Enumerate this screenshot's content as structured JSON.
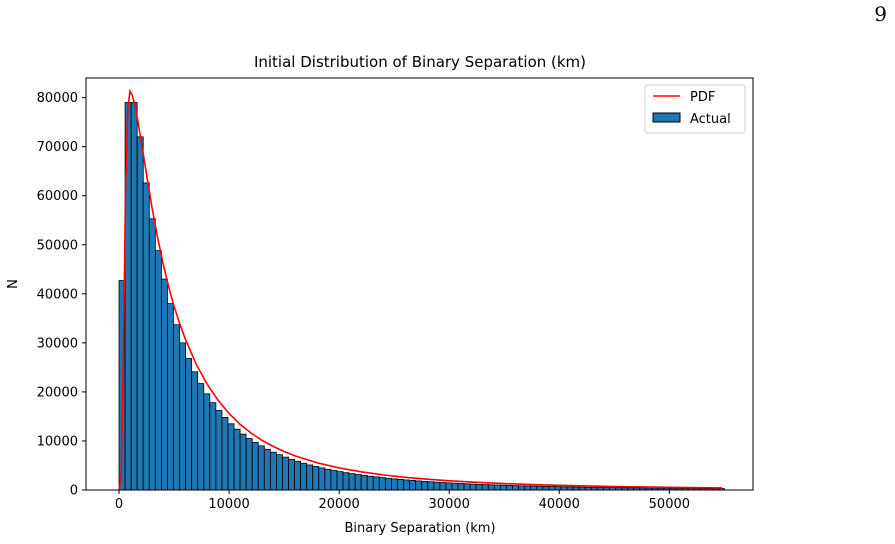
{
  "page": {
    "page_number": "9"
  },
  "chart_data": {
    "type": "bar",
    "title": "Initial Distribution of Binary Separation (km)",
    "xlabel": "Binary Separation (km)",
    "ylabel": "N",
    "xlim": [
      -3000,
      57600
    ],
    "ylim": [
      0,
      84000
    ],
    "xticks": [
      0,
      10000,
      20000,
      30000,
      40000,
      50000
    ],
    "yticks": [
      0,
      10000,
      20000,
      30000,
      40000,
      50000,
      60000,
      70000,
      80000
    ],
    "grid": false,
    "legend": {
      "placement": "top-right",
      "entries": [
        "PDF",
        "Actual"
      ]
    },
    "colors": {
      "bars": "#1f77b4",
      "bar_edge": "#000000",
      "pdf": "#ff0000"
    },
    "bins": {
      "start": 0,
      "width": 550,
      "count": 100
    },
    "series": [
      {
        "name": "Actual",
        "kind": "histogram",
        "values": [
          42700,
          79000,
          79000,
          72000,
          62600,
          55300,
          48800,
          43000,
          38000,
          33700,
          30000,
          26800,
          24100,
          21700,
          19600,
          17800,
          16200,
          14800,
          13500,
          12400,
          11400,
          10500,
          9700,
          9000,
          8300,
          7700,
          7200,
          6700,
          6250,
          5850,
          5450,
          5100,
          4800,
          4500,
          4230,
          3980,
          3750,
          3530,
          3330,
          3150,
          2980,
          2820,
          2670,
          2530,
          2400,
          2270,
          2160,
          2050,
          1950,
          1850,
          1760,
          1680,
          1600,
          1520,
          1450,
          1390,
          1320,
          1260,
          1210,
          1150,
          1100,
          1060,
          1010,
          970,
          930,
          890,
          850,
          820,
          790,
          760,
          730,
          700,
          680,
          650,
          630,
          600,
          580,
          560,
          540,
          520,
          500,
          490,
          470,
          460,
          440,
          430,
          410,
          400,
          390,
          380,
          370,
          360,
          350,
          340,
          330,
          320,
          310,
          300,
          295,
          290
        ]
      },
      {
        "name": "PDF",
        "kind": "line",
        "x": [
          0,
          200,
          400,
          600,
          800,
          1000,
          1200,
          1500,
          1800,
          2200,
          2600,
          3000,
          3500,
          4000,
          4500,
          5000,
          5500,
          6000,
          7000,
          8000,
          9000,
          10000,
          11000,
          12000,
          13000,
          14000,
          15000,
          16000,
          18000,
          20000,
          22000,
          24000,
          26000,
          28000,
          30000,
          32500,
          35000,
          37500,
          40000,
          42500,
          45000,
          47500,
          50000,
          52500,
          54800
        ],
        "y": [
          0,
          3000,
          28000,
          62000,
          78000,
          81300,
          80500,
          78000,
          74000,
          68500,
          63000,
          57500,
          51500,
          46200,
          41500,
          37500,
          34000,
          30900,
          25700,
          21600,
          18300,
          15600,
          13400,
          11600,
          10100,
          8900,
          7850,
          6950,
          5550,
          4500,
          3700,
          3080,
          2590,
          2200,
          1880,
          1560,
          1310,
          1110,
          950,
          820,
          710,
          620,
          545,
          480,
          430
        ]
      }
    ]
  }
}
